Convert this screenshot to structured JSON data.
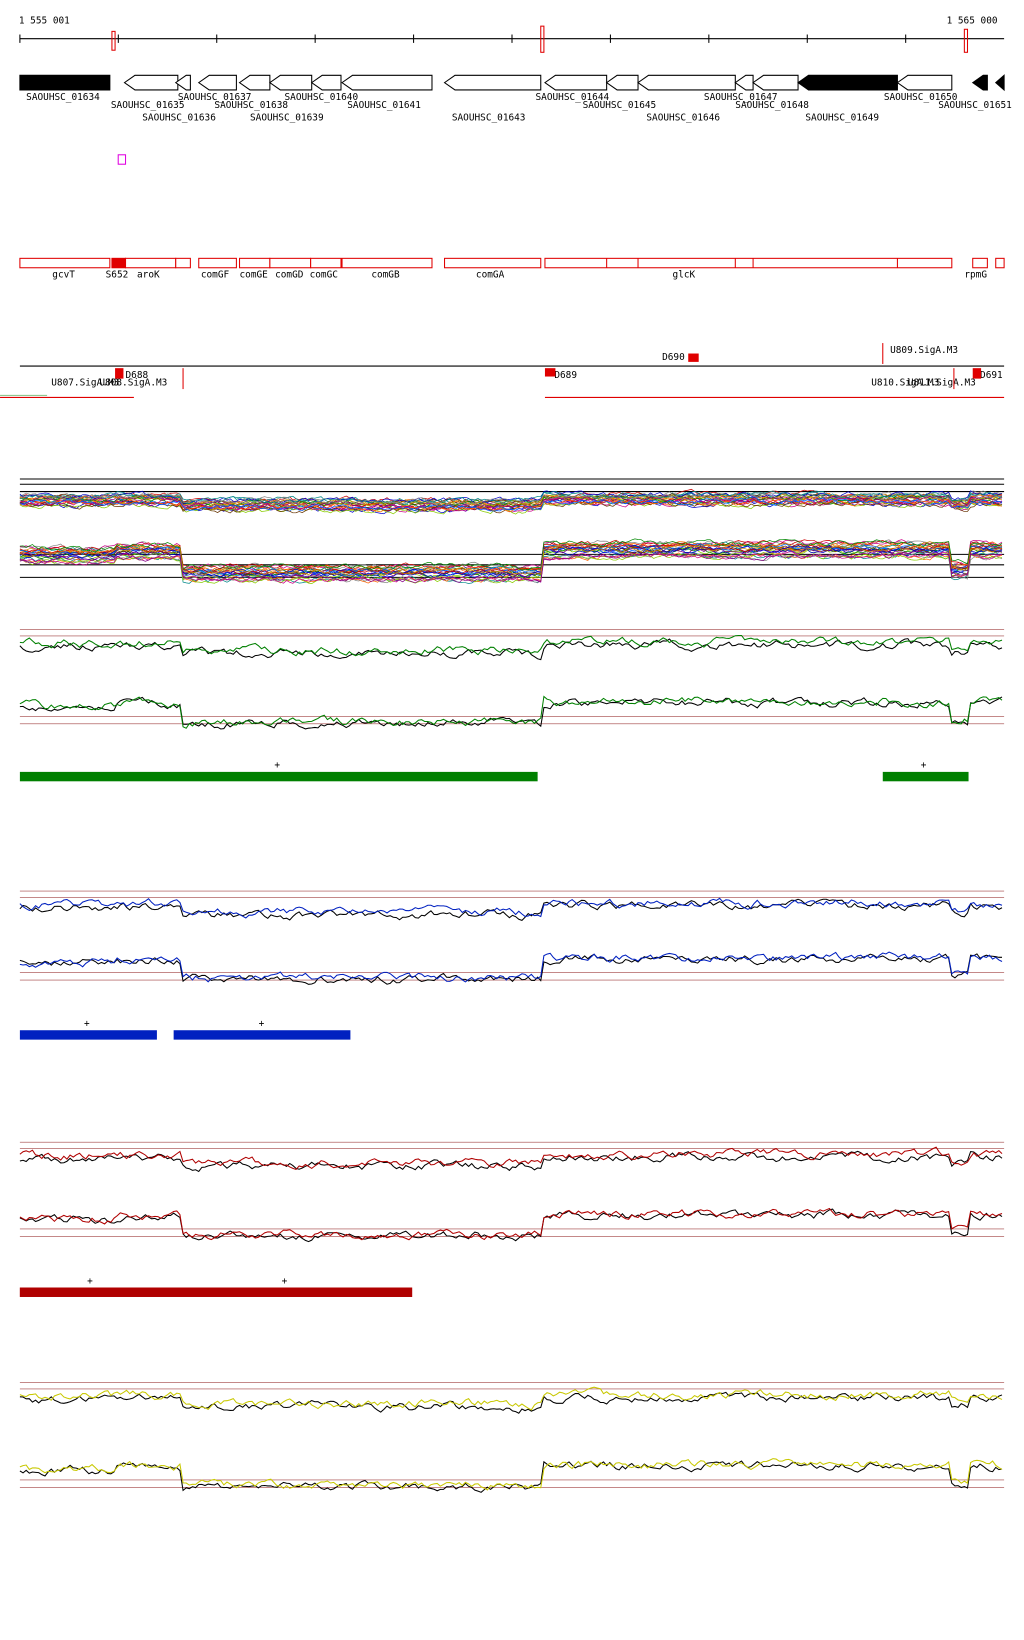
{
  "coordinates": {
    "start": "1 555 001",
    "end": "1 565 000"
  },
  "genes": [
    "SAOUHSC_01634",
    "SAOUHSC_01635",
    "SAOUHSC_01636",
    "SAOUHSC_01637",
    "SAOUHSC_01638",
    "SAOUHSC_01639",
    "SAOUHSC_01640",
    "SAOUHSC_01641",
    "SAOUHSC_01643",
    "SAOUHSC_01644",
    "SAOUHSC_01645",
    "SAOUHSC_01646",
    "SAOUHSC_01647",
    "SAOUHSC_01648",
    "SAOUHSC_01649",
    "SAOUHSC_01650",
    "SAOUHSC_01651"
  ],
  "operons": [
    "gcvT",
    "S652",
    "aroK",
    "comGF",
    "comGE",
    "comGD",
    "comGC",
    "comGB",
    "comGA",
    "glcK",
    "rpmG"
  ],
  "signals": [
    "D690",
    "U809.SigA.M3",
    "D688",
    "D689",
    "D691",
    "U807.SigA.M3",
    "U808.SigA.M3",
    "U810.SigA.M3",
    "U811.SigA.M3"
  ],
  "tracks": [
    {
      "color": "#008000",
      "segments": [
        "+",
        "+"
      ]
    },
    {
      "color": "#0020c0",
      "segments": [
        "+",
        "+"
      ]
    },
    {
      "color": "#b00000",
      "segments": [
        "+",
        "+"
      ]
    },
    {
      "color": "#c8c800",
      "segments": []
    }
  ]
}
